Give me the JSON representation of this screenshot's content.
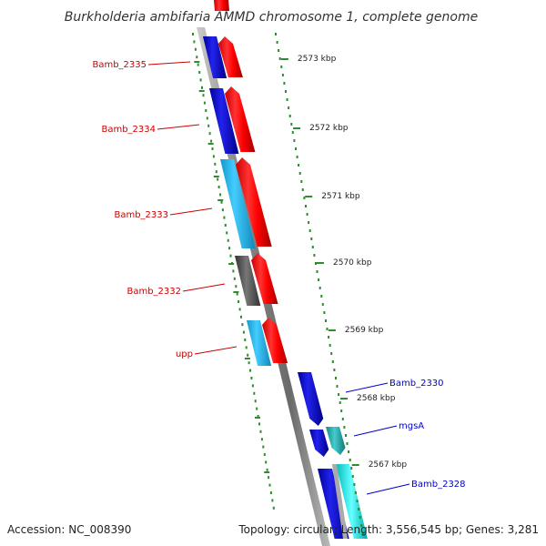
{
  "title": "Burkholderia ambifaria AMMD chromosome 1, complete genome",
  "footer": {
    "accession": "Accession: NC_008390",
    "topology": "Topology: circular; Length: 3,556,545 bp; Genes: 3,281"
  },
  "ticks": [
    {
      "label": "2573 kbp"
    },
    {
      "label": "2572 kbp"
    },
    {
      "label": "2571 kbp"
    },
    {
      "label": "2570 kbp"
    },
    {
      "label": "2569 kbp"
    },
    {
      "label": "2568 kbp"
    },
    {
      "label": "2567 kbp"
    }
  ],
  "left_labels": [
    {
      "name": "Bamb_2335"
    },
    {
      "name": "Bamb_2334"
    },
    {
      "name": "Bamb_2333"
    },
    {
      "name": "Bamb_2332"
    },
    {
      "name": "upp"
    }
  ],
  "right_labels": [
    {
      "name": "Bamb_2330"
    },
    {
      "name": "mgsA"
    },
    {
      "name": "Bamb_2328"
    }
  ],
  "colors": {
    "red": "#ff0000",
    "blue": "#0000cc",
    "cyan": "#22bbee",
    "gray": "#555555",
    "teal": "#22aaaa",
    "aqua": "#00eeee",
    "tick_green": "#2e8b2e",
    "label_red": "#cc0000",
    "label_blue": "#0000cc"
  }
}
